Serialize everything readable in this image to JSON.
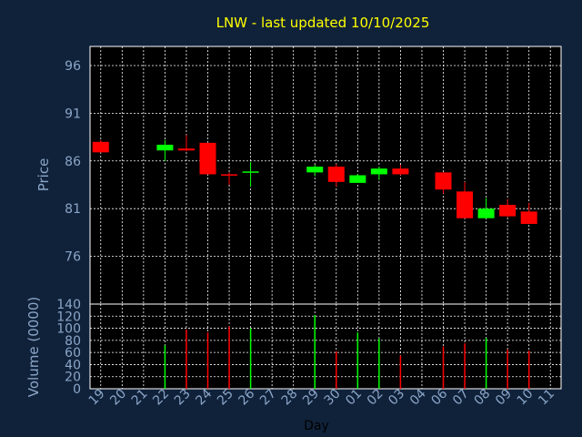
{
  "title": "LNW - last updated 10/10/2025",
  "colors": {
    "background": "#10223a",
    "plot_background": "#000000",
    "frame": "#ffffff",
    "grid": "#ffffff",
    "title": "#ffff00",
    "axis_text": "#8ba6c8",
    "up": "#00ff00",
    "down": "#ff0000",
    "xlabel_text": "#000000"
  },
  "chart_data": [
    {
      "type": "candlestick",
      "ylabel": "Price",
      "ylim": [
        71,
        98
      ],
      "yticks": [
        76,
        81,
        86,
        91,
        96
      ],
      "grid": true,
      "categories": [
        "19",
        "20",
        "21",
        "22",
        "23",
        "24",
        "25",
        "26",
        "27",
        "28",
        "29",
        "30",
        "01",
        "02",
        "03",
        "04",
        "06",
        "07",
        "08",
        "09",
        "10",
        "11"
      ],
      "candles": [
        {
          "day": "19",
          "open": 88.0,
          "high": 88.2,
          "low": 86.9,
          "close": 86.9
        },
        {
          "day": "22",
          "open": 87.1,
          "high": 88.2,
          "low": 86.0,
          "close": 87.7
        },
        {
          "day": "23",
          "open": 87.3,
          "high": 88.7,
          "low": 87.0,
          "close": 87.1
        },
        {
          "day": "24",
          "open": 87.9,
          "high": 87.9,
          "low": 84.6,
          "close": 84.6
        },
        {
          "day": "25",
          "open": 84.6,
          "high": 84.8,
          "low": 83.5,
          "close": 84.5
        },
        {
          "day": "26",
          "open": 84.8,
          "high": 85.9,
          "low": 83.3,
          "close": 84.9
        },
        {
          "day": "29",
          "open": 84.8,
          "high": 85.6,
          "low": 84.4,
          "close": 85.4
        },
        {
          "day": "30",
          "open": 85.4,
          "high": 85.7,
          "low": 83.3,
          "close": 83.8
        },
        {
          "day": "01",
          "open": 83.7,
          "high": 84.6,
          "low": 83.7,
          "close": 84.5
        },
        {
          "day": "02",
          "open": 84.6,
          "high": 85.4,
          "low": 84.0,
          "close": 85.2
        },
        {
          "day": "03",
          "open": 85.2,
          "high": 85.6,
          "low": 84.5,
          "close": 84.6
        },
        {
          "day": "06",
          "open": 84.8,
          "high": 84.8,
          "low": 82.6,
          "close": 83.0
        },
        {
          "day": "07",
          "open": 82.8,
          "high": 83.8,
          "low": 80.0,
          "close": 80.0
        },
        {
          "day": "08",
          "open": 80.0,
          "high": 82.1,
          "low": 80.0,
          "close": 81.0
        },
        {
          "day": "09",
          "open": 81.4,
          "high": 82.0,
          "low": 80.1,
          "close": 80.2
        },
        {
          "day": "10",
          "open": 80.7,
          "high": 81.6,
          "low": 79.4,
          "close": 79.4
        }
      ]
    },
    {
      "type": "bar",
      "ylabel": "Volume (0000)",
      "xlabel": "Day",
      "ylim": [
        0,
        140
      ],
      "yticks": [
        0,
        20,
        40,
        60,
        80,
        100,
        120,
        140
      ],
      "categories": [
        "19",
        "20",
        "21",
        "22",
        "23",
        "24",
        "25",
        "26",
        "27",
        "28",
        "29",
        "30",
        "01",
        "02",
        "03",
        "04",
        "06",
        "07",
        "08",
        "09",
        "10",
        "11"
      ],
      "bars": [
        {
          "day": "22",
          "value": 72,
          "direction": "up"
        },
        {
          "day": "23",
          "value": 98,
          "direction": "down"
        },
        {
          "day": "24",
          "value": 93,
          "direction": "down"
        },
        {
          "day": "25",
          "value": 103,
          "direction": "down"
        },
        {
          "day": "26",
          "value": 100,
          "direction": "up"
        },
        {
          "day": "29",
          "value": 122,
          "direction": "up"
        },
        {
          "day": "30",
          "value": 62,
          "direction": "down"
        },
        {
          "day": "01",
          "value": 93,
          "direction": "up"
        },
        {
          "day": "02",
          "value": 83,
          "direction": "up"
        },
        {
          "day": "03",
          "value": 55,
          "direction": "down"
        },
        {
          "day": "06",
          "value": 70,
          "direction": "down"
        },
        {
          "day": "07",
          "value": 75,
          "direction": "down"
        },
        {
          "day": "08",
          "value": 84,
          "direction": "up"
        },
        {
          "day": "09",
          "value": 65,
          "direction": "down"
        },
        {
          "day": "10",
          "value": 63,
          "direction": "down"
        }
      ]
    }
  ]
}
